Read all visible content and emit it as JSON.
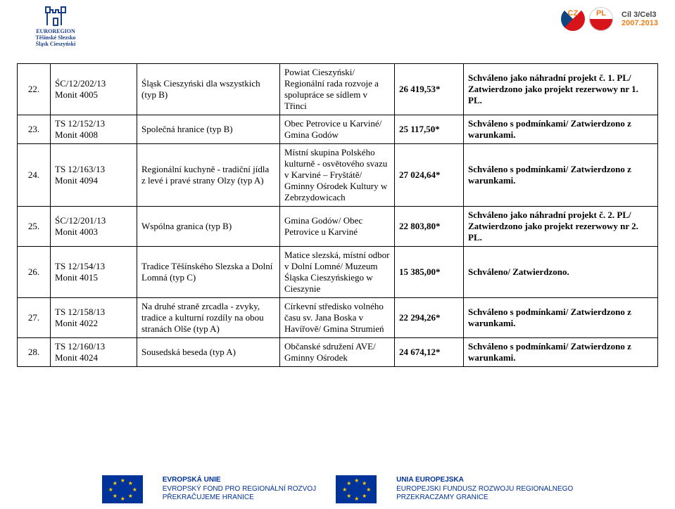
{
  "header": {
    "euroregion_line1": "EUROREGION",
    "euroregion_line2": "Těšínské Slezsko",
    "euroregion_line3": "Śląsk Cieszyński",
    "cil3_top": "Cíl 3/Cel3",
    "cil3_bottom": "2007.2013"
  },
  "rows": [
    {
      "n": "22.",
      "code1": "ŚC/12/202/13",
      "code2": "Monit 4005",
      "sub": "Śląsk Cieszyński dla wszystkich (typ B)",
      "loc": "Powiat Cieszyński/ Regionální rada rozvoje a spolupráce se sídlem v Třinci",
      "amt": "26 419,53*",
      "stat": "Schváleno jako náhradní projekt č. 1. PL/ Zatwierdzono jako projekt rezerwowy nr 1. PL."
    },
    {
      "n": "23.",
      "code1": "TS 12/152/13",
      "code2": "Monit 4008",
      "sub": "Společná hranice (typ B)",
      "loc": "Obec Petrovice u Karviné/ Gmina Godów",
      "amt": "25 117,50*",
      "stat": "Schváleno s podmínkami/ Zatwierdzono z warunkami."
    },
    {
      "n": "24.",
      "code1": "TS 12/163/13",
      "code2": "Monit 4094",
      "sub": "Regionální kuchyně - tradiční jídla z levé i pravé strany Olzy (typ A)",
      "loc": "Místní skupina Polského kulturně - osvětového svazu v Karviné – Fryštátě/ Gminny Ośrodek Kultury w Zebrzydowicach",
      "amt": "27 024,64*",
      "stat": "Schváleno s podmínkami/ Zatwierdzono z warunkami."
    },
    {
      "n": "25.",
      "code1": "ŚC/12/201/13",
      "code2": "Monit 4003",
      "sub": "Wspólna granica (typ B)",
      "loc": "Gmina Godów/ Obec Petrovice u Karviné",
      "amt": "22 803,80*",
      "stat": "Schváleno jako náhradní projekt č. 2. PL/ Zatwierdzono jako projekt rezerwowy nr 2. PL."
    },
    {
      "n": "26.",
      "code1": "TS 12/154/13",
      "code2": "Monit 4015",
      "sub": "Tradice Těšínského Slezska a Dolní Lomná (typ C)",
      "loc": "Matice slezská, místní odbor v Dolní Lomné/ Muzeum Śląska Cieszyńskiego w Cieszynie",
      "amt": "15 385,00*",
      "stat": "Schváleno/ Zatwierdzono."
    },
    {
      "n": "27.",
      "code1": "TS 12/158/13",
      "code2": "Monit 4022",
      "sub": "Na druhé straně zrcadla - zvyky, tradice a kulturní rozdíly na obou stranách Olše (typ A)",
      "loc": "Církevní středisko volného času sv. Jana Boska v Havířově/ Gmina Strumień",
      "amt": "22 294,26*",
      "stat": "Schváleno s podmínkami/ Zatwierdzono z warunkami."
    },
    {
      "n": "28.",
      "code1": "TS 12/160/13",
      "code2": "Monit 4024",
      "sub": "Sousedská beseda (typ A)",
      "loc": "Občanské sdružení AVE/ Gminny Ośrodek",
      "amt": "24 674,12*",
      "stat": "Schváleno s podmínkami/ Zatwierdzono z warunkami."
    }
  ],
  "footer": {
    "left_line1": "EVROPSKÁ UNIE",
    "left_line2": "EVROPSKÝ FOND PRO REGIONÁLNÍ ROZVOJ",
    "left_line3": "PŘEKRAČUJEME HRANICE",
    "right_line1": "UNIA EUROPEJSKA",
    "right_line2": "EUROPEJSKI FUNDUSZ ROZWOJU REGIONALNEGO",
    "right_line3": "PRZEKRACZAMY GRANICE"
  },
  "colors": {
    "eu_blue": "#003399",
    "orange": "#ef7e1a"
  }
}
